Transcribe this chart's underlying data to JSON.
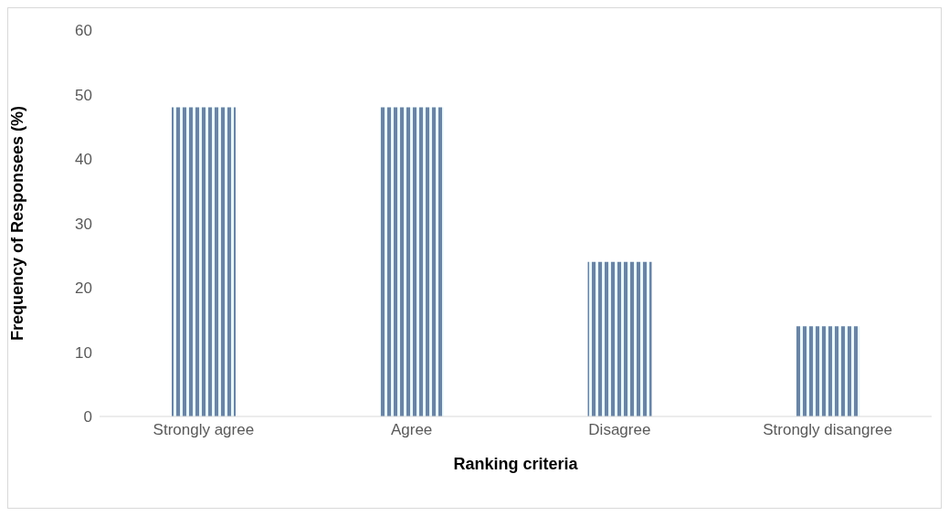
{
  "chart_data": {
    "type": "bar",
    "xlabel": "Ranking criteria",
    "ylabel": "Frequency of Responsees (%)",
    "categories": [
      "Strongly agree",
      "Agree",
      "Disagree",
      "Strongly disangree"
    ],
    "values": [
      48,
      48,
      24,
      14
    ],
    "color": "#6a84a4",
    "ylim": [
      0,
      60
    ],
    "yticks": [
      0,
      10,
      20,
      30,
      40,
      50,
      60
    ],
    "grid": false,
    "legend": false
  }
}
